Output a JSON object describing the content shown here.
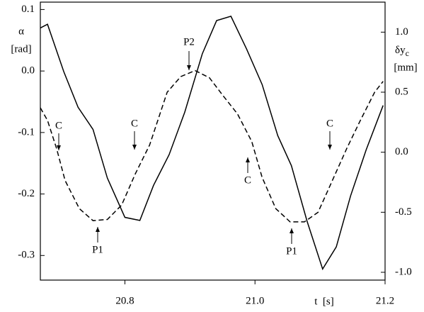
{
  "chart_data": {
    "type": "line",
    "xlabel": "t  [s]",
    "ylabel": "α",
    "ylabel_unit": "[rad]",
    "y2label": "δy",
    "y2label_sub": "c",
    "y2label_unit": "[mm]",
    "xlim": [
      20.67,
      21.2
    ],
    "xticks": [
      20.8,
      {
        "value": 21,
        "label": "21.0"
      },
      21.2
    ],
    "ylim": [
      -0.34,
      0.112
    ],
    "yticks": [
      -0.3,
      -0.2,
      -0.1,
      {
        "value": 0,
        "label": "0.0"
      },
      0.1
    ],
    "y2lim": [
      -1.065,
      1.25
    ],
    "y2ticks": [
      {
        "value": -1,
        "label": "-1.0"
      },
      -0.5,
      {
        "value": 0,
        "label": "0.0"
      },
      0.5,
      {
        "value": 1,
        "label": "1.0"
      }
    ],
    "series": [
      {
        "color": "#000000",
        "dash": "solid",
        "x": [
          20.67,
          20.681,
          20.706,
          20.728,
          20.751,
          20.773,
          20.8,
          20.823,
          20.844,
          20.868,
          20.892,
          20.919,
          20.941,
          20.963,
          20.987,
          21.011,
          21.035,
          21.056,
          21.08,
          21.104,
          21.125,
          21.147,
          21.171,
          21.197
        ],
        "values": [
          0.07,
          0.076,
          -0.001,
          -0.059,
          -0.095,
          -0.174,
          -0.238,
          -0.243,
          -0.186,
          -0.136,
          -0.067,
          0.028,
          0.082,
          0.089,
          0.036,
          -0.022,
          -0.105,
          -0.154,
          -0.244,
          -0.322,
          -0.286,
          -0.203,
          -0.128,
          -0.056
        ]
      },
      {
        "color": "#000000",
        "dash": "dashed",
        "axis": "y2",
        "x": [
          20.67,
          20.681,
          20.695,
          20.708,
          20.73,
          20.751,
          20.773,
          20.795,
          20.816,
          20.838,
          20.865,
          20.886,
          20.908,
          20.93,
          20.951,
          20.973,
          20.995,
          21.011,
          21.032,
          21.054,
          21.076,
          21.097,
          21.119,
          21.141,
          21.162,
          21.184,
          21.197
        ],
        "values": [
          0.37,
          0.265,
          0.03,
          -0.235,
          -0.47,
          -0.57,
          -0.56,
          -0.44,
          -0.18,
          0.06,
          0.5,
          0.63,
          0.68,
          0.62,
          0.47,
          0.32,
          0.09,
          -0.21,
          -0.47,
          -0.58,
          -0.58,
          -0.5,
          -0.235,
          0.03,
          0.265,
          0.5,
          0.59
        ]
      }
    ],
    "annotations": [
      "C",
      "C",
      "P1",
      "P2",
      "C",
      "P1",
      "C"
    ]
  }
}
